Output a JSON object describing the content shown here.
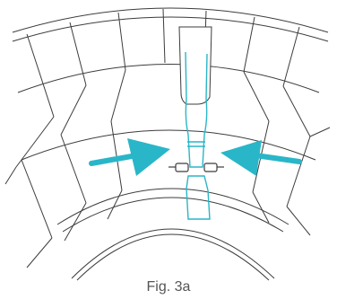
{
  "caption": "Fig. 3a",
  "colors": {
    "line": "#3c3c3c",
    "accent": "#29b6c8",
    "background": "#ffffff"
  },
  "icons": {
    "left_arrow": "arrow-right-icon",
    "right_arrow": "arrow-left-icon"
  }
}
